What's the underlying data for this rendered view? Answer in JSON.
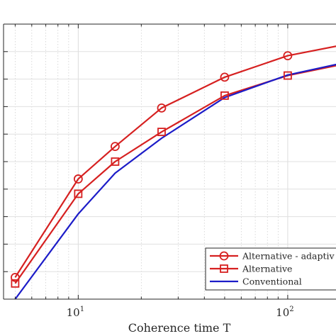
{
  "chart_data": {
    "type": "line",
    "xscale": "log",
    "xlabel": "Coherence time T",
    "xlim": [
      4.4,
      170
    ],
    "ylim": [
      0,
      1
    ],
    "ylabel": "",
    "grid": true,
    "minor_grid": true,
    "x_ticks": [
      {
        "value": 10,
        "base": "10",
        "exp": "1"
      },
      {
        "value": 100,
        "base": "10",
        "exp": "2"
      }
    ],
    "legend": {
      "placement": "bottom-right"
    },
    "series": [
      {
        "name": "Alternative - adaptiv",
        "color": "#d62020",
        "marker": "circle",
        "x": [
          5,
          10,
          15,
          25,
          50,
          100,
          200
        ],
        "y": [
          0.079,
          0.437,
          0.555,
          0.695,
          0.807,
          0.885,
          0.93
        ]
      },
      {
        "name": "Alternative",
        "color": "#d62020",
        "marker": "square",
        "x": [
          5,
          10,
          15,
          25,
          50,
          100,
          200
        ],
        "y": [
          0.057,
          0.383,
          0.5,
          0.608,
          0.74,
          0.813,
          0.86
        ]
      },
      {
        "name": "Conventional",
        "color": "#1c1cc8",
        "marker": "none",
        "x": [
          5,
          10,
          15,
          25,
          50,
          100,
          200
        ],
        "y": [
          0.0,
          0.31,
          0.458,
          0.585,
          0.733,
          0.815,
          0.865
        ]
      }
    ]
  }
}
